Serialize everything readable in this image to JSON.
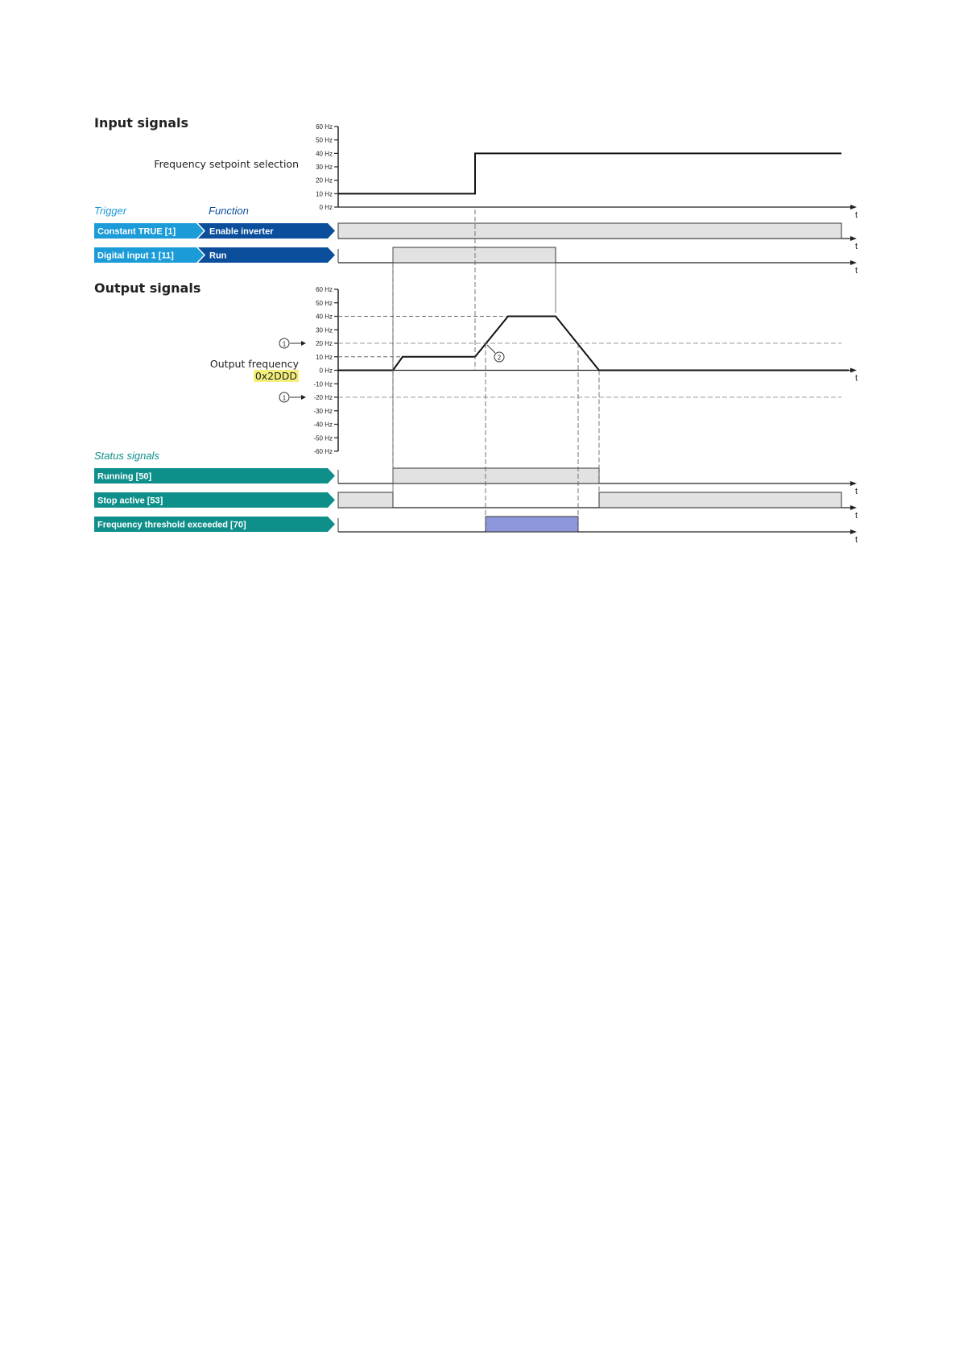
{
  "input_section": {
    "title": "Input signals",
    "setpoint_label": "Frequency setpoint selection",
    "axis_ticks": [
      "60 Hz",
      "50 Hz",
      "40 Hz",
      "30 Hz",
      "20 Hz",
      "10 Hz",
      "0 Hz"
    ],
    "setpoint_levels_hz": [
      10,
      40
    ],
    "trigger_header": "Trigger",
    "function_header": "Function",
    "rows": [
      {
        "trigger": "Constant TRUE [1]",
        "function": "Enable inverter"
      },
      {
        "trigger": "Digital input 1 [11]",
        "function": "Run"
      }
    ]
  },
  "output_section": {
    "title": "Output signals",
    "frequency_label": "Output frequency",
    "frequency_param": "0x2DDD",
    "axis_ticks": [
      "60 Hz",
      "50 Hz",
      "40 Hz",
      "30 Hz",
      "20 Hz",
      "10 Hz",
      "0 Hz",
      "-10 Hz",
      "-20 Hz",
      "-30 Hz",
      "-40 Hz",
      "-50 Hz",
      "-60 Hz"
    ],
    "threshold_hz": 20,
    "marker_1": "1",
    "marker_2": "2",
    "status_header": "Status signals",
    "status_rows": [
      "Running [50]",
      "Stop active [53]",
      "Frequency threshold exceeded [70]"
    ]
  },
  "time_axis_label": "t",
  "colors": {
    "trigger": "#1b9bd7",
    "function": "#0b4f9c",
    "status": "#0e8f8a",
    "signal_fill": "#e2e2e2",
    "threshold_fill": "#8e97dc",
    "param_highlight": "#f3ef7a"
  }
}
